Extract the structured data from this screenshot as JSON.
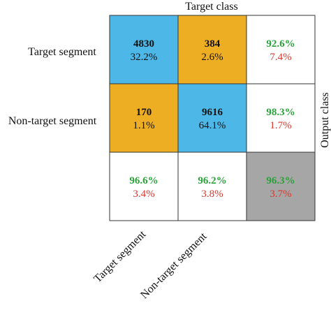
{
  "chart_data": {
    "type": "heatmap",
    "title": "Target class",
    "ylabel": "Output class",
    "row_labels": [
      "Target segment",
      "Non-target segment"
    ],
    "col_labels": [
      "Target segment",
      "Non-target segment"
    ],
    "cells": [
      [
        {
          "count": "4830",
          "pct": "32.2%",
          "color": "#4db8e8"
        },
        {
          "count": "384",
          "pct": "2.6%",
          "color": "#edae23"
        }
      ],
      [
        {
          "count": "170",
          "pct": "1.1%",
          "color": "#edae23"
        },
        {
          "count": "9616",
          "pct": "64.1%",
          "color": "#4db8e8"
        }
      ]
    ],
    "row_summary": [
      {
        "correct": "92.6%",
        "error": "7.4%"
      },
      {
        "correct": "98.3%",
        "error": "1.7%"
      }
    ],
    "col_summary": [
      {
        "correct": "96.6%",
        "error": "3.4%"
      },
      {
        "correct": "96.2%",
        "error": "3.8%"
      }
    ],
    "overall": {
      "correct": "96.3%",
      "error": "3.7%",
      "color": "#a6a6a6"
    }
  }
}
